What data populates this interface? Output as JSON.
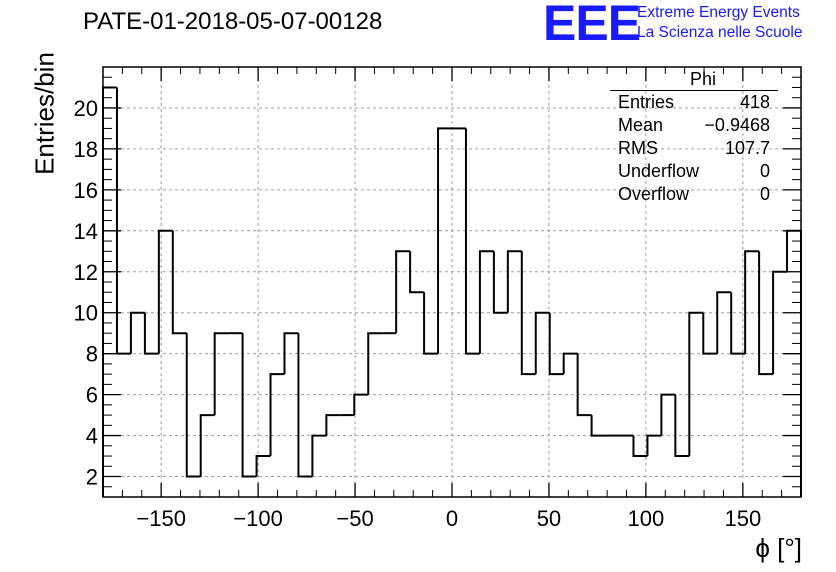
{
  "header": {
    "run_title": "PATE-01-2018-05-07-00128",
    "logo_mark": "EEE",
    "logo_line1": "Extreme Energy Events",
    "logo_line2": "La Scienza nelle Scuole"
  },
  "stats": {
    "title": "Phi",
    "rows": [
      {
        "label": "Entries",
        "value": "418"
      },
      {
        "label": "Mean",
        "value": "−0.9468"
      },
      {
        "label": "RMS",
        "value": "107.7"
      },
      {
        "label": "Underflow",
        "value": "0"
      },
      {
        "label": "Overflow",
        "value": "0"
      }
    ]
  },
  "chart_data": {
    "type": "bar",
    "style": "step-histogram",
    "title": "PATE-01-2018-05-07-00128",
    "xlabel": "ϕ [°]",
    "ylabel": "Entries/bin",
    "xlim": [
      -180,
      180
    ],
    "ylim": [
      1,
      22
    ],
    "bin_width": 7.2,
    "bin_edges_start": -180,
    "values": [
      21,
      8,
      10,
      8,
      14,
      9,
      2,
      5,
      9,
      9,
      2,
      3,
      7,
      9,
      2,
      4,
      5,
      5,
      6,
      9,
      9,
      13,
      11,
      8,
      19,
      19,
      8,
      13,
      10,
      13,
      7,
      10,
      7,
      8,
      5,
      4,
      4,
      4,
      3,
      4,
      6,
      3,
      10,
      8,
      11,
      8,
      13,
      7,
      12,
      14
    ],
    "x_ticks": [
      -150,
      -100,
      -50,
      0,
      50,
      100,
      150
    ],
    "x_tick_labels": [
      "−150",
      "−100",
      "−50",
      "0",
      "50",
      "100",
      "150"
    ],
    "y_ticks": [
      2,
      4,
      6,
      8,
      10,
      12,
      14,
      16,
      18,
      20
    ],
    "y_tick_labels": [
      "2",
      "4",
      "6",
      "8",
      "10",
      "12",
      "14",
      "16",
      "18",
      "20"
    ],
    "grid": true,
    "line_color": "#000000",
    "grid_color": "#9e9e9e"
  }
}
